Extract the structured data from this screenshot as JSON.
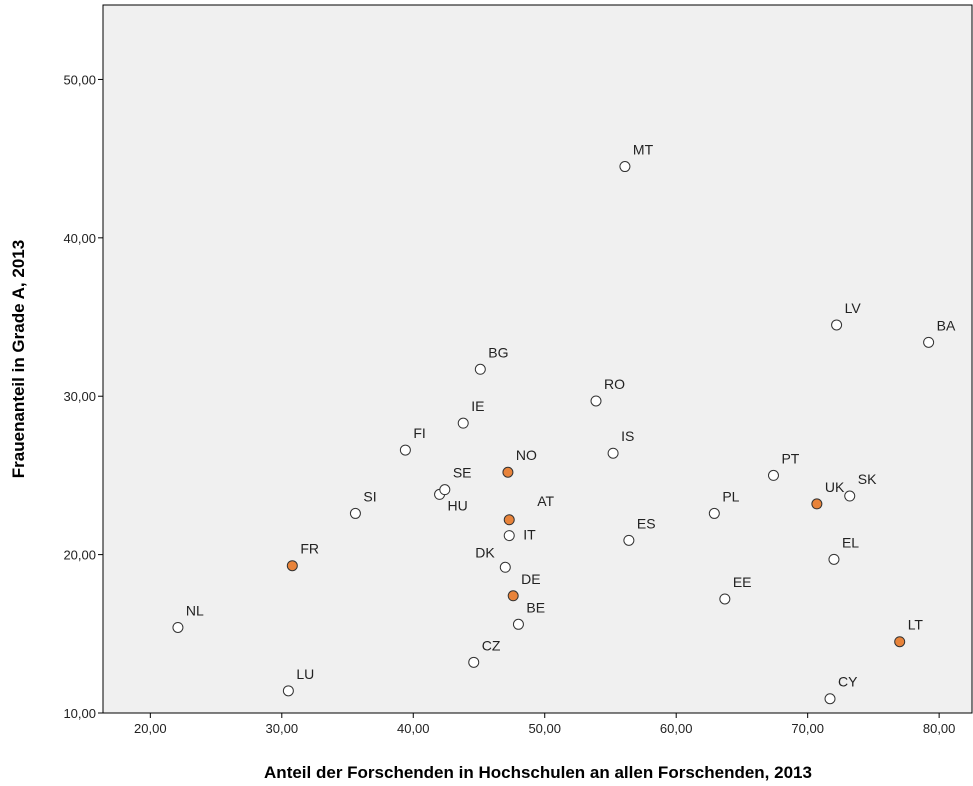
{
  "chart_data": {
    "type": "scatter",
    "x_label": "Anteil der Forschenden in Hochschulen an allen Forschenden, 2013",
    "y_label": "Frauenanteil in Grade A, 2013",
    "labels": [
      "NL",
      "LU",
      "FR",
      "SI",
      "FI",
      "HU",
      "SE",
      "IE",
      "BG",
      "CZ",
      "DK",
      "IT",
      "AT",
      "NO",
      "DE",
      "BE",
      "RO",
      "MT",
      "IS",
      "ES",
      "PL",
      "EE",
      "PT",
      "UK",
      "SK",
      "LV",
      "EL",
      "CY",
      "LT",
      "BA"
    ],
    "x": [
      22.1,
      30.5,
      30.8,
      35.6,
      39.4,
      42.0,
      42.4,
      43.8,
      45.1,
      44.6,
      47.0,
      47.3,
      47.3,
      47.2,
      47.6,
      48.0,
      53.9,
      56.1,
      55.2,
      56.4,
      62.9,
      63.7,
      67.4,
      70.7,
      73.2,
      72.2,
      72.0,
      71.7,
      77.0,
      79.2
    ],
    "y": [
      15.4,
      11.4,
      19.3,
      22.6,
      26.6,
      23.8,
      24.1,
      28.3,
      31.7,
      13.2,
      19.2,
      21.2,
      22.2,
      25.2,
      17.4,
      15.6,
      29.7,
      44.5,
      26.4,
      20.9,
      22.6,
      17.2,
      25.0,
      23.2,
      23.7,
      34.5,
      19.7,
      10.9,
      14.5,
      33.4
    ],
    "point_colors": [
      "#ffffff",
      "#ffffff",
      "#e8833a",
      "#ffffff",
      "#ffffff",
      "#ffffff",
      "#ffffff",
      "#ffffff",
      "#ffffff",
      "#ffffff",
      "#ffffff",
      "#ffffff",
      "#e8833a",
      "#e8833a",
      "#e8833a",
      "#ffffff",
      "#ffffff",
      "#ffffff",
      "#ffffff",
      "#ffffff",
      "#ffffff",
      "#ffffff",
      "#ffffff",
      "#e8833a",
      "#ffffff",
      "#ffffff",
      "#ffffff",
      "#ffffff",
      "#e8833a",
      "#ffffff"
    ],
    "xlim": [
      16.4,
      82.5
    ],
    "ylim": [
      10,
      54.7
    ],
    "xticks": [
      {
        "value": 20,
        "label": "20,00"
      },
      {
        "value": 30,
        "label": "30,00"
      },
      {
        "value": 40,
        "label": "40,00"
      },
      {
        "value": 50,
        "label": "50,00"
      },
      {
        "value": 60,
        "label": "60,00"
      },
      {
        "value": 70,
        "label": "70,00"
      },
      {
        "value": 80,
        "label": "80,00"
      }
    ],
    "yticks": [
      {
        "value": 10,
        "label": "10,00"
      },
      {
        "value": 20,
        "label": "20,00"
      },
      {
        "value": 30,
        "label": "30,00"
      },
      {
        "value": 40,
        "label": "40,00"
      },
      {
        "value": 50,
        "label": "50,00"
      }
    ]
  }
}
